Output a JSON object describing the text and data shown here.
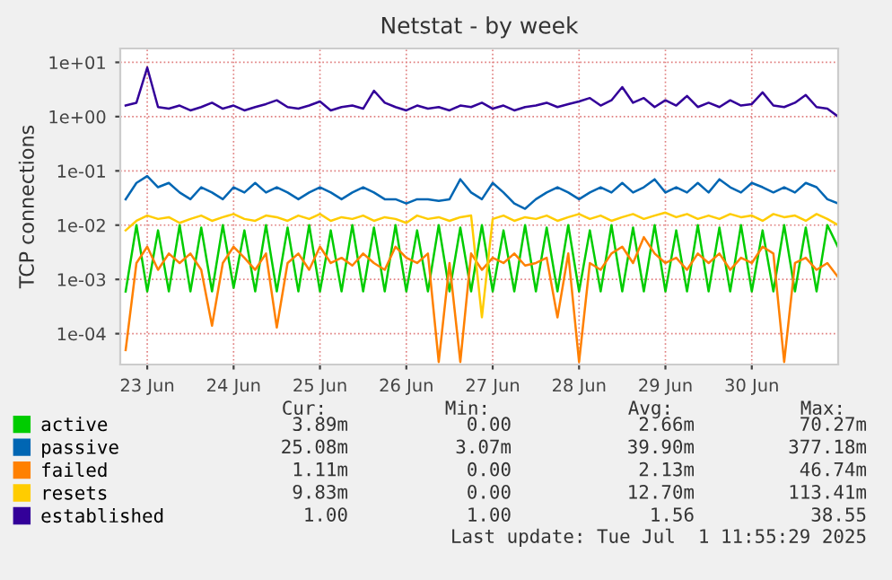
{
  "chart_data": {
    "type": "line",
    "title": "Netstat - by week",
    "ylabel": "TCP connections",
    "log": "y",
    "grid": true,
    "legend": "bottom left",
    "line_style": "solid",
    "marker": "none",
    "x": [
      "2025-06-23T06:00",
      "2025-06-23T09:00",
      "2025-06-23T12:00",
      "2025-06-23T15:00",
      "2025-06-23T18:00",
      "2025-06-23T21:00",
      "2025-06-24T00:00",
      "2025-06-24T03:00",
      "2025-06-24T06:00",
      "2025-06-24T09:00",
      "2025-06-24T12:00",
      "2025-06-24T15:00",
      "2025-06-24T18:00",
      "2025-06-24T21:00",
      "2025-06-25T00:00",
      "2025-06-25T03:00",
      "2025-06-25T06:00",
      "2025-06-25T09:00",
      "2025-06-25T12:00",
      "2025-06-25T15:00",
      "2025-06-25T18:00",
      "2025-06-25T21:00",
      "2025-06-26T00:00",
      "2025-06-26T03:00",
      "2025-06-26T06:00",
      "2025-06-26T09:00",
      "2025-06-26T12:00",
      "2025-06-26T15:00",
      "2025-06-26T18:00",
      "2025-06-26T21:00",
      "2025-06-27T00:00",
      "2025-06-27T03:00",
      "2025-06-27T06:00",
      "2025-06-27T09:00",
      "2025-06-27T12:00",
      "2025-06-27T15:00",
      "2025-06-27T18:00",
      "2025-06-27T21:00",
      "2025-06-28T00:00",
      "2025-06-28T03:00",
      "2025-06-28T06:00",
      "2025-06-28T09:00",
      "2025-06-28T12:00",
      "2025-06-28T15:00",
      "2025-06-28T18:00",
      "2025-06-28T21:00",
      "2025-06-29T00:00",
      "2025-06-29T03:00",
      "2025-06-29T06:00",
      "2025-06-29T09:00",
      "2025-06-29T12:00",
      "2025-06-29T15:00",
      "2025-06-29T18:00",
      "2025-06-29T21:00",
      "2025-06-30T00:00",
      "2025-06-30T03:00",
      "2025-06-30T06:00",
      "2025-06-30T09:00",
      "2025-06-30T12:00",
      "2025-06-30T15:00",
      "2025-06-30T18:00",
      "2025-06-30T21:00",
      "2025-07-01T00:00",
      "2025-07-01T03:00",
      "2025-07-01T06:00",
      "2025-07-01T09:00",
      "2025-07-01T12:00"
    ],
    "xlim": [
      "2025-06-23T04:30",
      "2025-07-01T12:00"
    ],
    "xticks": [
      {
        "value": "2025-06-23T12:00",
        "label": "23 Jun"
      },
      {
        "value": "2025-06-24T12:00",
        "label": "24 Jun"
      },
      {
        "value": "2025-06-25T12:00",
        "label": "25 Jun"
      },
      {
        "value": "2025-06-26T12:00",
        "label": "26 Jun"
      },
      {
        "value": "2025-06-27T12:00",
        "label": "27 Jun"
      },
      {
        "value": "2025-06-28T12:00",
        "label": "28 Jun"
      },
      {
        "value": "2025-06-29T12:00",
        "label": "29 Jun"
      },
      {
        "value": "2025-06-30T12:00",
        "label": "30 Jun"
      }
    ],
    "ylim": [
      2.7e-05,
      18
    ],
    "yticks": [
      {
        "value": 0.0001,
        "label": "1e-04"
      },
      {
        "value": 0.001,
        "label": "1e-03"
      },
      {
        "value": 0.01,
        "label": "1e-02"
      },
      {
        "value": 0.1,
        "label": "1e-01"
      },
      {
        "value": 1,
        "label": "1e+00"
      },
      {
        "value": 10,
        "label": "1e+01"
      }
    ],
    "series": [
      {
        "name": "active",
        "color": "#00cc00",
        "values": [
          0.0006,
          0.01,
          0.0006,
          0.008,
          0.0006,
          0.01,
          0.0006,
          0.009,
          0.0006,
          0.01,
          0.0007,
          0.008,
          0.0006,
          0.01,
          0.0006,
          0.009,
          0.0006,
          0.01,
          0.0006,
          0.008,
          0.0006,
          0.01,
          0.0006,
          0.009,
          0.0006,
          0.01,
          0.0006,
          0.008,
          0.0006,
          0.01,
          0.0006,
          0.009,
          0.0006,
          0.01,
          0.0006,
          0.008,
          0.0006,
          0.01,
          0.0006,
          0.009,
          0.0006,
          0.01,
          0.0006,
          0.008,
          0.0006,
          0.01,
          0.0006,
          0.009,
          0.0006,
          0.01,
          0.0006,
          0.008,
          0.0006,
          0.01,
          0.0006,
          0.009,
          0.0006,
          0.01,
          0.0006,
          0.008,
          0.0006,
          0.01,
          0.0006,
          0.009,
          0.0006,
          0.01,
          0.0039
        ]
      },
      {
        "name": "passive",
        "color": "#0066b3",
        "values": [
          0.03,
          0.06,
          0.08,
          0.05,
          0.06,
          0.04,
          0.03,
          0.05,
          0.04,
          0.03,
          0.05,
          0.04,
          0.06,
          0.04,
          0.05,
          0.04,
          0.03,
          0.04,
          0.05,
          0.04,
          0.03,
          0.04,
          0.05,
          0.04,
          0.03,
          0.03,
          0.025,
          0.03,
          0.03,
          0.028,
          0.03,
          0.07,
          0.04,
          0.03,
          0.06,
          0.04,
          0.025,
          0.02,
          0.03,
          0.04,
          0.05,
          0.04,
          0.03,
          0.04,
          0.05,
          0.04,
          0.06,
          0.04,
          0.05,
          0.07,
          0.04,
          0.05,
          0.04,
          0.06,
          0.04,
          0.07,
          0.05,
          0.04,
          0.06,
          0.05,
          0.04,
          0.05,
          0.04,
          0.06,
          0.05,
          0.03,
          0.025
        ]
      },
      {
        "name": "failed",
        "color": "#ff8000",
        "values": [
          5e-05,
          0.002,
          0.004,
          0.0015,
          0.003,
          0.002,
          0.003,
          0.0015,
          0.00014,
          0.002,
          0.004,
          0.0025,
          0.0015,
          0.003,
          0.00013,
          0.002,
          0.003,
          0.0015,
          0.004,
          0.002,
          0.0025,
          0.0018,
          0.003,
          0.002,
          0.0015,
          0.004,
          0.0025,
          0.002,
          0.003,
          3e-05,
          0.002,
          3e-05,
          0.003,
          0.0015,
          0.0025,
          0.002,
          0.003,
          0.0018,
          0.002,
          0.0025,
          0.0002,
          0.003,
          3e-05,
          0.002,
          0.0015,
          0.003,
          0.004,
          0.002,
          0.006,
          0.003,
          0.002,
          0.0025,
          0.0015,
          0.003,
          0.002,
          0.003,
          0.0015,
          0.0025,
          0.002,
          0.004,
          0.003,
          3e-05,
          0.002,
          0.0025,
          0.0015,
          0.002,
          0.0011
        ]
      },
      {
        "name": "resets",
        "color": "#ffcc00",
        "values": [
          0.008,
          0.012,
          0.015,
          0.013,
          0.014,
          0.011,
          0.013,
          0.015,
          0.012,
          0.014,
          0.016,
          0.013,
          0.012,
          0.015,
          0.014,
          0.012,
          0.015,
          0.013,
          0.016,
          0.012,
          0.014,
          0.013,
          0.015,
          0.012,
          0.014,
          0.013,
          0.011,
          0.015,
          0.013,
          0.014,
          0.012,
          0.014,
          0.015,
          0.0002,
          0.013,
          0.015,
          0.012,
          0.014,
          0.013,
          0.015,
          0.012,
          0.014,
          0.016,
          0.013,
          0.015,
          0.012,
          0.014,
          0.016,
          0.013,
          0.015,
          0.017,
          0.014,
          0.016,
          0.013,
          0.015,
          0.013,
          0.016,
          0.014,
          0.015,
          0.012,
          0.016,
          0.014,
          0.015,
          0.012,
          0.016,
          0.013,
          0.01
        ]
      },
      {
        "name": "established",
        "color": "#330099",
        "values": [
          1.6,
          1.8,
          8.0,
          1.5,
          1.4,
          1.6,
          1.3,
          1.5,
          1.8,
          1.4,
          1.6,
          1.3,
          1.5,
          1.7,
          2.0,
          1.5,
          1.4,
          1.6,
          1.9,
          1.3,
          1.5,
          1.6,
          1.4,
          3.0,
          1.8,
          1.5,
          1.3,
          1.6,
          1.4,
          1.5,
          1.3,
          1.6,
          1.5,
          1.8,
          1.4,
          1.6,
          1.3,
          1.5,
          1.6,
          1.8,
          1.5,
          1.7,
          1.9,
          2.2,
          1.6,
          2.0,
          3.5,
          1.8,
          2.2,
          1.5,
          2.0,
          1.6,
          2.4,
          1.5,
          1.8,
          1.5,
          2.0,
          1.6,
          1.7,
          2.8,
          1.6,
          1.5,
          1.8,
          2.5,
          1.5,
          1.4,
          1.0
        ]
      }
    ],
    "annotations": [
      "Cur:",
      "Min:",
      "Avg:",
      "Max:",
      "3.89m",
      "0.00",
      "2.66m",
      "70.27m",
      "25.08m",
      "3.07m",
      "39.90m",
      "377.18m",
      "1.11m",
      "0.00",
      "2.13m",
      "46.74m",
      "9.83m",
      "0.00",
      "12.70m",
      "113.41m",
      "1.00",
      "1.00",
      "1.56",
      "38.55",
      "Last update: Tue Jul  1 11:55:29 2025"
    ]
  }
}
